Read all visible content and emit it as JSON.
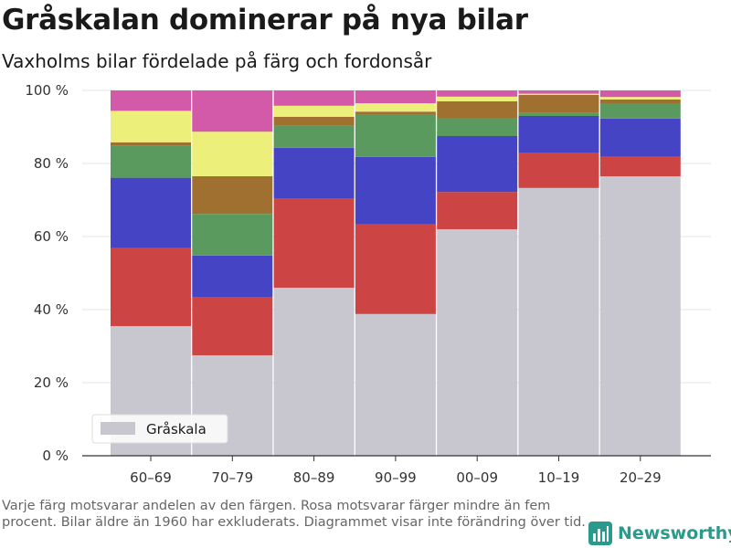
{
  "title": "Gråskalan dominerar på nya bilar",
  "subtitle": "Vaxholms bilar fördelade på färg och fordonsår",
  "footnote": "Varje färg motsvarar andelen av den färgen. Rosa motsvarar färger mindre än fem procent. Bilar äldre än 1960 har exkluderats. Diagrammet visar inte förändring över tid.",
  "brand": {
    "name": "Newsworthy",
    "icon": "bar-chart-logo-icon",
    "color": "#2a9a8c"
  },
  "chart_data": {
    "type": "bar",
    "stacked": true,
    "categories": [
      "60–69",
      "70–79",
      "80–89",
      "90–99",
      "00–09",
      "10–19",
      "20–29"
    ],
    "ylim": [
      0,
      100
    ],
    "yticks": [
      0,
      20,
      40,
      60,
      80,
      100
    ],
    "ytick_suffix": " %",
    "grid": true,
    "legend": {
      "position": "bottom-left",
      "entries": [
        "Gråskala"
      ]
    },
    "series": [
      {
        "name": "Gråskala",
        "color": "#c8c7cf",
        "values": [
          35.5,
          27.5,
          46,
          38.8,
          62,
          73.3,
          76.5
        ]
      },
      {
        "color": "#cc4444",
        "values": [
          21.3,
          16,
          24.5,
          24.5,
          10.2,
          9.7,
          5.3
        ]
      },
      {
        "color": "#4444c4",
        "values": [
          19.3,
          11.3,
          13.8,
          18.5,
          15.3,
          10,
          10.5
        ]
      },
      {
        "color": "#5a9a5e",
        "values": [
          8.7,
          11.4,
          6.1,
          11.7,
          5,
          0.8,
          4.2
        ]
      },
      {
        "color": "#a07030",
        "values": [
          1,
          10.3,
          2.4,
          0.7,
          4.5,
          5,
          1
        ]
      },
      {
        "color": "#ecf07a",
        "values": [
          8.6,
          12.2,
          3,
          2.3,
          1.3,
          0.3,
          0.7
        ]
      },
      {
        "color": "#d35aa8",
        "values": [
          5.6,
          11.3,
          4.2,
          3.5,
          1.7,
          0.9,
          1.8
        ]
      }
    ]
  }
}
